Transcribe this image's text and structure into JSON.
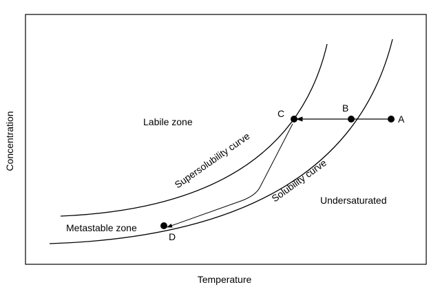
{
  "axes": {
    "xlabel": "Temperature",
    "ylabel": "Concentration"
  },
  "zones": {
    "labile": "Labile zone",
    "metastable": "Metastable zone",
    "undersaturated": "Undersaturated"
  },
  "curves": {
    "supersolubility": "Supersolubility curve",
    "solubility": "Solubility curve"
  },
  "points": {
    "a": "A",
    "b": "B",
    "c": "C",
    "d": "D"
  },
  "colors": {
    "line": "#000000",
    "background": "#ffffff"
  }
}
